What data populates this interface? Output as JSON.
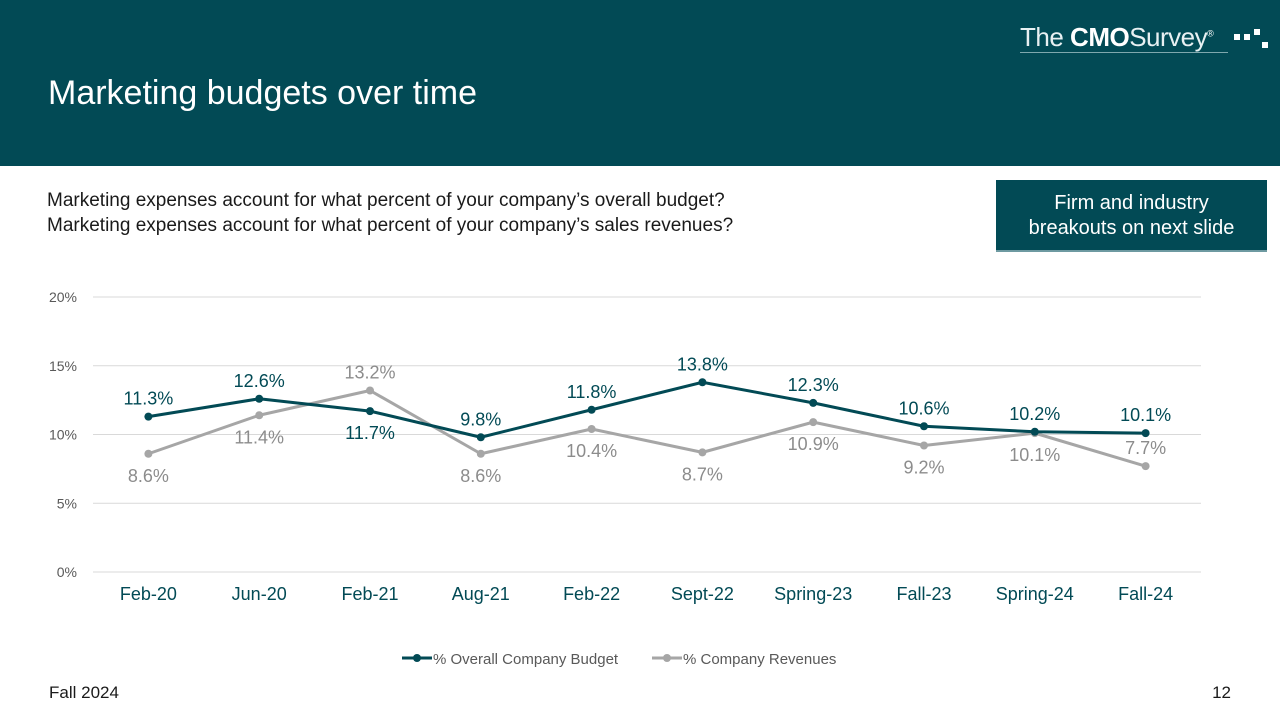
{
  "header": {
    "title": "Marketing budgets over time",
    "logo": {
      "prefix": "The",
      "bold": "CMO",
      "suffix": "Survey",
      "mark": "®"
    }
  },
  "questions": [
    "Marketing expenses account for what percent of your company’s overall budget?",
    "Marketing expenses account for what percent of your company’s sales revenues?"
  ],
  "breakout_button": {
    "line1": "Firm and industry",
    "line2": "breakouts on next slide"
  },
  "footer": {
    "left": "Fall 2024",
    "page": "12"
  },
  "colors": {
    "brand": "#024a55",
    "series1": "#024a55",
    "series2": "#a6a6a6",
    "grid": "#d9d9d9",
    "axis_text": "#595959",
    "category_text": "#024a55"
  },
  "chart_data": {
    "type": "line",
    "categories": [
      "Feb-20",
      "Jun-20",
      "Feb-21",
      "Aug-21",
      "Feb-22",
      "Sept-22",
      "Spring-23",
      "Fall-23",
      "Spring-24",
      "Fall-24"
    ],
    "yticks": [
      "0%",
      "5%",
      "10%",
      "15%",
      "20%"
    ],
    "ylim": [
      0,
      20
    ],
    "grid": true,
    "legend_position": "bottom",
    "series": [
      {
        "name": "% Overall Company Budget",
        "values": [
          11.3,
          12.6,
          11.7,
          9.8,
          11.8,
          13.8,
          12.3,
          10.6,
          10.2,
          10.1
        ],
        "labels": [
          "11.3%",
          "12.6%",
          "11.7%",
          "9.8%",
          "11.8%",
          "13.8%",
          "12.3%",
          "10.6%",
          "10.2%",
          "10.1%"
        ],
        "label_side": [
          "above",
          "above",
          "below",
          "above",
          "above",
          "above",
          "above",
          "above",
          "above",
          "above"
        ]
      },
      {
        "name": "% Company Revenues",
        "values": [
          8.6,
          11.4,
          13.2,
          8.6,
          10.4,
          8.7,
          10.9,
          9.2,
          10.1,
          7.7
        ],
        "labels": [
          "8.6%",
          "11.4%",
          "13.2%",
          "8.6%",
          "10.4%",
          "8.7%",
          "10.9%",
          "9.2%",
          "10.1%",
          "7.7%"
        ],
        "label_side": [
          "below",
          "below",
          "above",
          "below",
          "below",
          "below",
          "below",
          "below",
          "below",
          "above"
        ]
      }
    ]
  }
}
